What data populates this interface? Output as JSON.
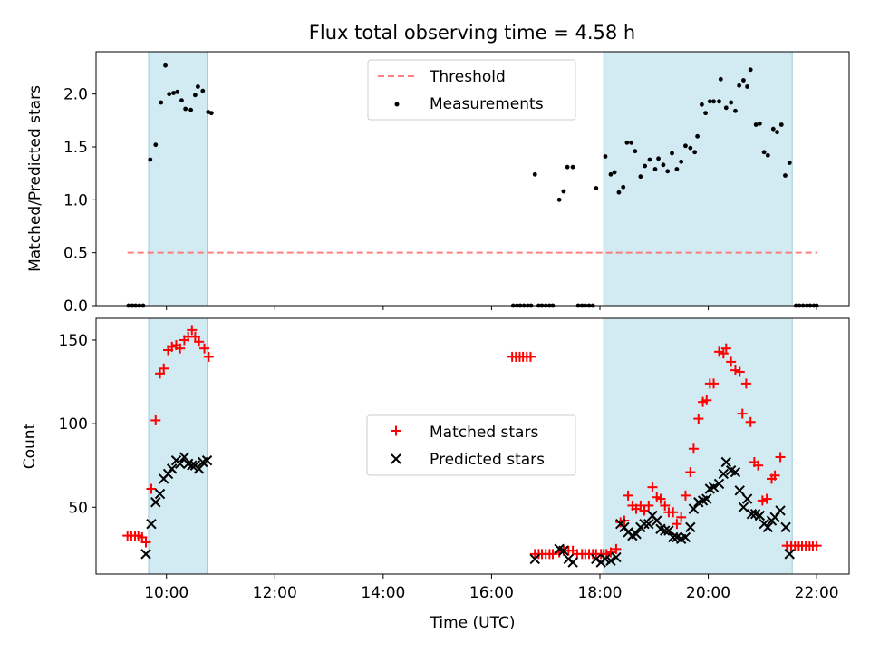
{
  "figure": {
    "title": "Flux total observing time = 4.58 h"
  },
  "chart_data": [
    {
      "type": "scatter",
      "xlabel": "",
      "ylabel": "Matched/Predicted stars",
      "xlim": [
        8.7,
        22.6
      ],
      "ylim": [
        0.0,
        2.4
      ],
      "yticks": [
        0.0,
        0.5,
        1.0,
        1.5,
        2.0
      ],
      "ytick_labels": [
        "0.0",
        "0.5",
        "1.0",
        "1.5",
        "2.0"
      ],
      "x_tick_labels_hidden": true,
      "legend": {
        "placement": "upper-center",
        "entries": [
          "Threshold",
          "Measurements"
        ]
      },
      "shaded_intervals": [
        [
          9.67,
          10.75
        ],
        [
          18.07,
          21.55
        ]
      ],
      "shade_color": "#add8e6",
      "threshold": {
        "name": "Threshold",
        "value": 0.5,
        "x_range": [
          9.28,
          22.0
        ],
        "color": "#ff6b6b",
        "style": "dashed"
      },
      "measurements": {
        "name": "Measurements",
        "color": "#000000",
        "points": [
          [
            9.3,
            0
          ],
          [
            9.37,
            0
          ],
          [
            9.43,
            0
          ],
          [
            9.5,
            0
          ],
          [
            9.57,
            0
          ],
          [
            9.7,
            1.38
          ],
          [
            9.8,
            1.52
          ],
          [
            9.9,
            1.92
          ],
          [
            9.98,
            2.27
          ],
          [
            10.05,
            2.0
          ],
          [
            10.13,
            2.01
          ],
          [
            10.2,
            2.02
          ],
          [
            10.28,
            1.94
          ],
          [
            10.35,
            1.86
          ],
          [
            10.45,
            1.85
          ],
          [
            10.53,
            1.99
          ],
          [
            10.58,
            2.07
          ],
          [
            10.67,
            2.03
          ],
          [
            10.77,
            1.83
          ],
          [
            10.83,
            1.82
          ],
          [
            16.4,
            0
          ],
          [
            16.47,
            0
          ],
          [
            16.53,
            0
          ],
          [
            16.6,
            0
          ],
          [
            16.67,
            0
          ],
          [
            16.73,
            0
          ],
          [
            16.8,
            1.24
          ],
          [
            16.87,
            0
          ],
          [
            16.93,
            0
          ],
          [
            17.0,
            0
          ],
          [
            17.07,
            0
          ],
          [
            17.13,
            0
          ],
          [
            17.25,
            1.0
          ],
          [
            17.33,
            1.08
          ],
          [
            17.4,
            1.31
          ],
          [
            17.5,
            1.31
          ],
          [
            17.6,
            0
          ],
          [
            17.67,
            0
          ],
          [
            17.73,
            0
          ],
          [
            17.8,
            0
          ],
          [
            17.87,
            0
          ],
          [
            17.93,
            1.11
          ],
          [
            18.1,
            1.41
          ],
          [
            18.2,
            1.24
          ],
          [
            18.27,
            1.26
          ],
          [
            18.35,
            1.07
          ],
          [
            18.43,
            1.12
          ],
          [
            18.5,
            1.54
          ],
          [
            18.58,
            1.54
          ],
          [
            18.65,
            1.46
          ],
          [
            18.75,
            1.22
          ],
          [
            18.83,
            1.32
          ],
          [
            18.92,
            1.38
          ],
          [
            19.02,
            1.29
          ],
          [
            19.08,
            1.39
          ],
          [
            19.17,
            1.33
          ],
          [
            19.25,
            1.27
          ],
          [
            19.33,
            1.44
          ],
          [
            19.42,
            1.29
          ],
          [
            19.5,
            1.36
          ],
          [
            19.58,
            1.51
          ],
          [
            19.67,
            1.49
          ],
          [
            19.75,
            1.45
          ],
          [
            19.8,
            1.6
          ],
          [
            19.88,
            1.9
          ],
          [
            19.95,
            1.82
          ],
          [
            20.03,
            1.93
          ],
          [
            20.1,
            1.93
          ],
          [
            20.2,
            1.93
          ],
          [
            20.23,
            2.14
          ],
          [
            20.33,
            1.87
          ],
          [
            20.42,
            1.92
          ],
          [
            20.5,
            1.84
          ],
          [
            20.57,
            2.08
          ],
          [
            20.65,
            2.13
          ],
          [
            20.72,
            2.07
          ],
          [
            20.78,
            2.23
          ],
          [
            20.88,
            1.71
          ],
          [
            20.95,
            1.72
          ],
          [
            21.03,
            1.45
          ],
          [
            21.1,
            1.42
          ],
          [
            21.2,
            1.67
          ],
          [
            21.27,
            1.64
          ],
          [
            21.35,
            1.71
          ],
          [
            21.42,
            1.23
          ],
          [
            21.5,
            1.35
          ],
          [
            21.62,
            0
          ],
          [
            21.68,
            0
          ],
          [
            21.75,
            0
          ],
          [
            21.82,
            0
          ],
          [
            21.88,
            0
          ],
          [
            21.95,
            0
          ],
          [
            22.0,
            0
          ]
        ]
      }
    },
    {
      "type": "scatter",
      "xlabel": "Time (UTC)",
      "ylabel": "Count",
      "xlim": [
        8.7,
        22.6
      ],
      "ylim": [
        10,
        163
      ],
      "yticks": [
        50,
        100,
        150
      ],
      "ytick_labels": [
        "50",
        "100",
        "150"
      ],
      "xticks": [
        10,
        12,
        14,
        16,
        18,
        20,
        22
      ],
      "xtick_labels": [
        "10:00",
        "12:00",
        "14:00",
        "16:00",
        "18:00",
        "20:00",
        "22:00"
      ],
      "legend": {
        "placement": "center",
        "entries": [
          "Matched stars",
          "Predicted stars"
        ]
      },
      "shaded_intervals": [
        [
          9.67,
          10.75
        ],
        [
          18.07,
          21.55
        ]
      ],
      "shade_color": "#add8e6",
      "series": [
        {
          "name": "Matched stars",
          "marker": "plus",
          "color": "#ff0000",
          "points": [
            [
              9.28,
              33
            ],
            [
              9.35,
              33
            ],
            [
              9.42,
              33
            ],
            [
              9.48,
              33
            ],
            [
              9.55,
              32
            ],
            [
              9.62,
              29
            ],
            [
              9.72,
              61
            ],
            [
              9.8,
              102
            ],
            [
              9.88,
              130
            ],
            [
              9.95,
              133
            ],
            [
              10.03,
              144
            ],
            [
              10.1,
              146
            ],
            [
              10.18,
              147
            ],
            [
              10.25,
              145
            ],
            [
              10.33,
              150
            ],
            [
              10.4,
              152
            ],
            [
              10.47,
              156
            ],
            [
              10.53,
              152
            ],
            [
              10.6,
              149
            ],
            [
              10.7,
              145
            ],
            [
              10.78,
              140
            ],
            [
              16.38,
              140
            ],
            [
              16.45,
              140
            ],
            [
              16.52,
              140
            ],
            [
              16.58,
              140
            ],
            [
              16.65,
              140
            ],
            [
              16.72,
              140
            ],
            [
              16.8,
              22
            ],
            [
              16.87,
              22
            ],
            [
              16.93,
              22
            ],
            [
              17.0,
              22
            ],
            [
              17.07,
              22
            ],
            [
              17.13,
              22
            ],
            [
              17.25,
              23
            ],
            [
              17.33,
              24
            ],
            [
              17.42,
              24
            ],
            [
              17.5,
              24
            ],
            [
              17.58,
              22
            ],
            [
              17.67,
              22
            ],
            [
              17.73,
              22
            ],
            [
              17.8,
              22
            ],
            [
              17.87,
              22
            ],
            [
              17.93,
              22
            ],
            [
              18.02,
              22
            ],
            [
              18.07,
              22
            ],
            [
              18.12,
              22
            ],
            [
              18.2,
              23
            ],
            [
              18.3,
              25
            ],
            [
              18.38,
              41
            ],
            [
              18.45,
              42
            ],
            [
              18.52,
              57
            ],
            [
              18.6,
              51
            ],
            [
              18.67,
              49
            ],
            [
              18.75,
              51
            ],
            [
              18.82,
              48
            ],
            [
              18.9,
              51
            ],
            [
              18.97,
              62
            ],
            [
              19.05,
              56
            ],
            [
              19.12,
              55
            ],
            [
              19.2,
              51
            ],
            [
              19.27,
              47
            ],
            [
              19.35,
              47
            ],
            [
              19.42,
              40
            ],
            [
              19.5,
              44
            ],
            [
              19.58,
              57
            ],
            [
              19.67,
              71
            ],
            [
              19.73,
              85
            ],
            [
              19.82,
              103
            ],
            [
              19.9,
              113
            ],
            [
              19.97,
              114
            ],
            [
              20.03,
              124
            ],
            [
              20.1,
              124
            ],
            [
              20.2,
              143
            ],
            [
              20.28,
              142
            ],
            [
              20.33,
              145
            ],
            [
              20.42,
              137
            ],
            [
              20.5,
              132
            ],
            [
              20.58,
              131
            ],
            [
              20.63,
              106
            ],
            [
              20.7,
              124
            ],
            [
              20.78,
              101
            ],
            [
              20.85,
              77
            ],
            [
              20.92,
              75
            ],
            [
              21.0,
              54
            ],
            [
              21.08,
              55
            ],
            [
              21.17,
              67
            ],
            [
              21.23,
              69
            ],
            [
              21.33,
              80
            ],
            [
              21.45,
              27
            ],
            [
              21.53,
              27
            ],
            [
              21.6,
              27
            ],
            [
              21.67,
              27
            ],
            [
              21.73,
              27
            ],
            [
              21.8,
              27
            ],
            [
              21.87,
              27
            ],
            [
              21.93,
              27
            ],
            [
              22.0,
              27
            ]
          ]
        },
        {
          "name": "Predicted stars",
          "marker": "x",
          "color": "#000000",
          "points": [
            [
              9.62,
              22
            ],
            [
              9.72,
              40
            ],
            [
              9.8,
              53
            ],
            [
              9.88,
              58
            ],
            [
              9.95,
              67
            ],
            [
              10.03,
              70
            ],
            [
              10.1,
              73
            ],
            [
              10.18,
              78
            ],
            [
              10.25,
              76
            ],
            [
              10.33,
              80
            ],
            [
              10.4,
              76
            ],
            [
              10.47,
              75
            ],
            [
              10.53,
              75
            ],
            [
              10.6,
              73
            ],
            [
              10.67,
              77
            ],
            [
              10.75,
              78
            ],
            [
              16.8,
              19
            ],
            [
              17.25,
              25
            ],
            [
              17.33,
              24
            ],
            [
              17.42,
              19
            ],
            [
              17.5,
              17
            ],
            [
              17.93,
              19
            ],
            [
              18.02,
              17
            ],
            [
              18.1,
              19
            ],
            [
              18.2,
              18
            ],
            [
              18.3,
              20
            ],
            [
              18.38,
              40
            ],
            [
              18.45,
              38
            ],
            [
              18.52,
              35
            ],
            [
              18.6,
              33
            ],
            [
              18.67,
              34
            ],
            [
              18.75,
              38
            ],
            [
              18.82,
              40
            ],
            [
              18.9,
              40
            ],
            [
              18.97,
              45
            ],
            [
              19.05,
              42
            ],
            [
              19.12,
              37
            ],
            [
              19.2,
              36
            ],
            [
              19.27,
              36
            ],
            [
              19.35,
              32
            ],
            [
              19.42,
              32
            ],
            [
              19.5,
              31
            ],
            [
              19.58,
              32
            ],
            [
              19.67,
              38
            ],
            [
              19.73,
              49
            ],
            [
              19.82,
              53
            ],
            [
              19.9,
              54
            ],
            [
              19.97,
              55
            ],
            [
              20.03,
              61
            ],
            [
              20.1,
              62
            ],
            [
              20.2,
              64
            ],
            [
              20.28,
              70
            ],
            [
              20.33,
              77
            ],
            [
              20.42,
              72
            ],
            [
              20.5,
              71
            ],
            [
              20.58,
              60
            ],
            [
              20.65,
              50
            ],
            [
              20.72,
              55
            ],
            [
              20.8,
              46
            ],
            [
              20.87,
              46
            ],
            [
              20.95,
              45
            ],
            [
              21.03,
              40
            ],
            [
              21.1,
              38
            ],
            [
              21.17,
              42
            ],
            [
              21.23,
              44
            ],
            [
              21.33,
              48
            ],
            [
              21.43,
              38
            ],
            [
              21.5,
              22
            ]
          ]
        }
      ]
    }
  ]
}
